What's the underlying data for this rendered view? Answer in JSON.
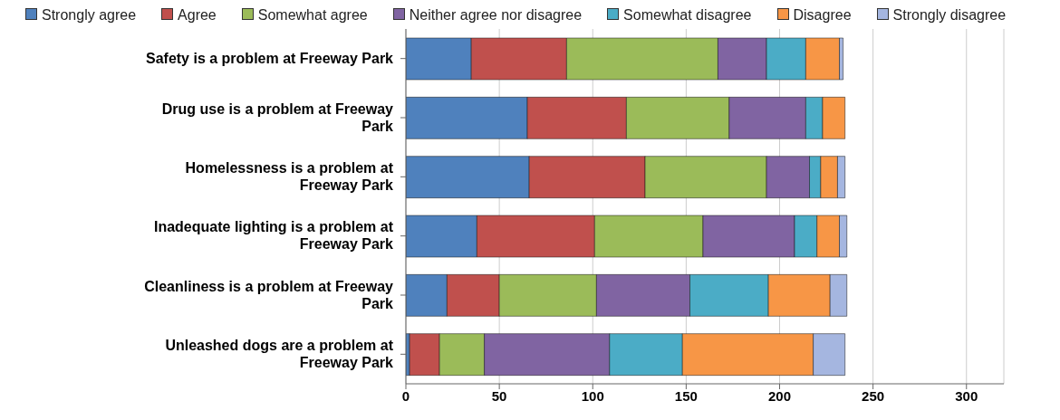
{
  "chart_data": {
    "type": "bar",
    "orientation": "horizontal",
    "stacked": true,
    "categories": [
      "Safety is a problem at Freeway Park",
      "Drug use is a problem at Freeway Park",
      "Homelessness is a problem at Freeway Park",
      "Inadequate lighting is a problem at Freeway Park",
      "Cleanliness is a problem at Freeway Park",
      "Unleashed dogs are a problem at Freeway Park"
    ],
    "series": [
      {
        "name": "Strongly agree",
        "color": "#4f81bd",
        "values": [
          35,
          65,
          66,
          38,
          22,
          2
        ]
      },
      {
        "name": "Agree",
        "color": "#c0504d",
        "values": [
          51,
          53,
          62,
          63,
          28,
          16
        ]
      },
      {
        "name": "Somewhat agree",
        "color": "#9bbb59",
        "values": [
          81,
          55,
          65,
          58,
          52,
          24
        ]
      },
      {
        "name": "Neither agree nor disagree",
        "color": "#8064a2",
        "values": [
          26,
          41,
          23,
          49,
          50,
          67
        ]
      },
      {
        "name": "Somewhat disagree",
        "color": "#4bacc6",
        "values": [
          21,
          9,
          6,
          12,
          42,
          39
        ]
      },
      {
        "name": "Disagree",
        "color": "#f79646",
        "values": [
          18,
          12,
          9,
          12,
          33,
          70
        ]
      },
      {
        "name": "Strongly disagree",
        "color": "#a5b6e0",
        "values": [
          2,
          0,
          4,
          4,
          9,
          17
        ]
      }
    ],
    "xlim": [
      0,
      320
    ],
    "xticks": [
      0,
      50,
      100,
      150,
      200,
      250,
      300
    ],
    "grid": "x",
    "legend": "top"
  }
}
